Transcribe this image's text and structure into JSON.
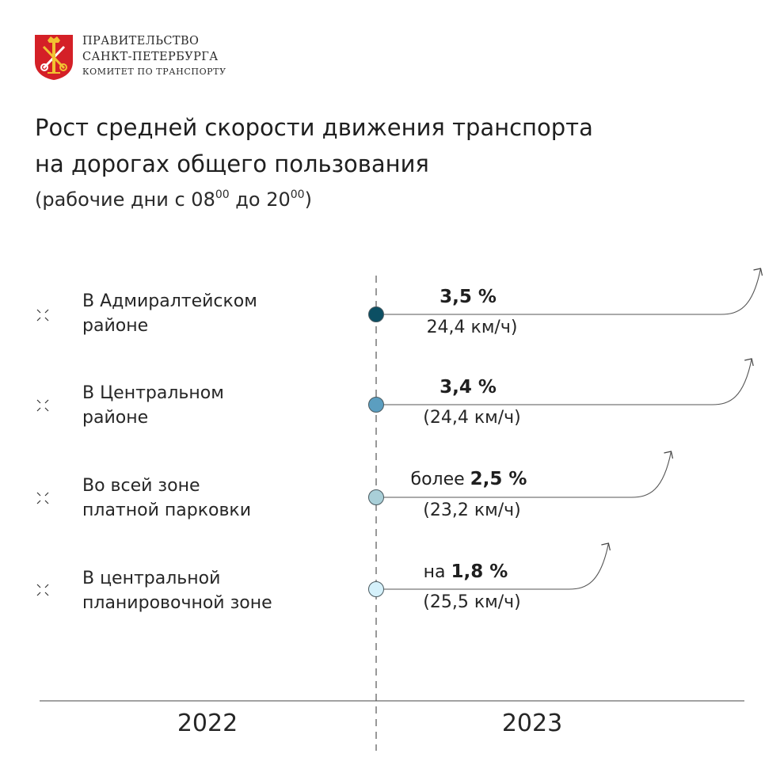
{
  "header": {
    "org_line1": "ПРАВИТЕЛЬСТВО",
    "org_line2": "САНКТ-ПЕТЕРБУРГА",
    "org_line3": "КОМИТЕТ ПО ТРАНСПОРТУ"
  },
  "chart_data": {
    "type": "line",
    "title_line1": "Рост средней скорости движения транспорта",
    "title_line2": "на дорогах общего пользования",
    "subtitle": {
      "prefix": "(рабочие дни с 08",
      "sup1": "00",
      "mid": " до 20",
      "sup2": "00",
      "suffix": ")"
    },
    "x": [
      "2022",
      "2023"
    ],
    "rows": [
      {
        "label_line1": "В Адмиралтейском",
        "label_line2": "районе",
        "prefix": "",
        "growth_percent": 3.5,
        "growth_text": "3,5 %",
        "speed_text": "24,4 км/ч)",
        "color": "#0c4f63"
      },
      {
        "label_line1": "В Центральном",
        "label_line2": "районе",
        "prefix": "",
        "growth_percent": 3.4,
        "growth_text": "3,4 %",
        "speed_text": "(24,4 км/ч)",
        "color": "#5b9ec0"
      },
      {
        "label_line1": "Во всей зоне",
        "label_line2": "платной парковки",
        "prefix": "более ",
        "growth_percent": 2.5,
        "growth_text": "2,5 %",
        "speed_text": "(23,2 км/ч)",
        "color": "#a9cfd8"
      },
      {
        "label_line1": "В центральной",
        "label_line2": "планировочной зоне",
        "prefix": "на ",
        "growth_percent": 1.8,
        "growth_text": "1,8 %",
        "speed_text": "(25,5 км/ч)",
        "color": "#d5f1fb"
      }
    ]
  }
}
